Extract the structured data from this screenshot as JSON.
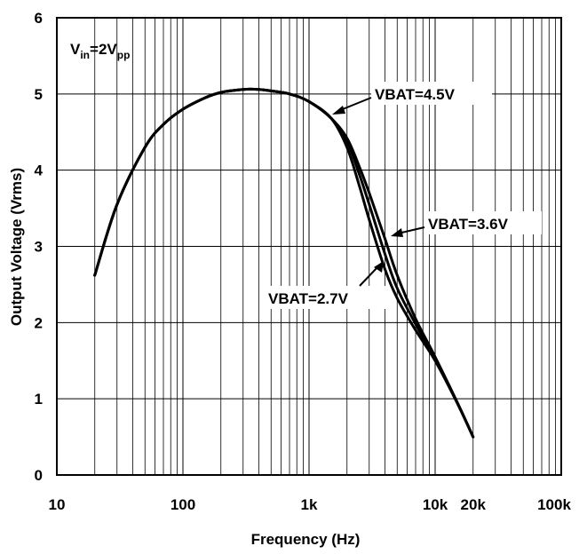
{
  "chart_data": {
    "type": "line",
    "title": "",
    "xlabel": "Frequency (Hz)",
    "ylabel": "Output Voltage (Vrms)",
    "xscale": "log",
    "xlim": [
      10,
      100000
    ],
    "ylim": [
      0,
      6
    ],
    "grid": true,
    "x_ticks": [
      {
        "value": 10,
        "label": "10"
      },
      {
        "value": 100,
        "label": "100"
      },
      {
        "value": 1000,
        "label": "1k"
      },
      {
        "value": 10000,
        "label": "10k"
      },
      {
        "value": 20000,
        "label": "20k"
      },
      {
        "value": 100000,
        "label": "100k"
      }
    ],
    "y_ticks": [
      {
        "value": 0,
        "label": "0"
      },
      {
        "value": 1,
        "label": "1"
      },
      {
        "value": 2,
        "label": "2"
      },
      {
        "value": 3,
        "label": "3"
      },
      {
        "value": 4,
        "label": "4"
      },
      {
        "value": 5,
        "label": "5"
      },
      {
        "value": 6,
        "label": "6"
      }
    ],
    "series": [
      {
        "name": "VBAT=4.5V",
        "x": [
          20,
          30,
          50,
          70,
          100,
          150,
          200,
          300,
          400,
          500,
          700,
          1000,
          1500,
          2000,
          2500,
          3000,
          4000,
          5000,
          7000,
          10000,
          15000,
          20000
        ],
        "y": [
          2.62,
          3.55,
          4.3,
          4.6,
          4.8,
          4.95,
          5.02,
          5.06,
          5.06,
          5.04,
          5.0,
          4.9,
          4.68,
          4.42,
          4.05,
          3.7,
          3.1,
          2.62,
          2.05,
          1.55,
          0.95,
          0.5
        ]
      },
      {
        "name": "VBAT=3.6V",
        "x": [
          20,
          30,
          50,
          70,
          100,
          150,
          200,
          300,
          400,
          500,
          700,
          1000,
          1500,
          2000,
          2500,
          3000,
          4000,
          5000,
          7000,
          10000,
          15000,
          20000
        ],
        "y": [
          2.62,
          3.55,
          4.3,
          4.6,
          4.8,
          4.95,
          5.02,
          5.06,
          5.06,
          5.04,
          5.0,
          4.9,
          4.68,
          4.38,
          3.95,
          3.55,
          2.9,
          2.45,
          1.98,
          1.52,
          0.95,
          0.5
        ]
      },
      {
        "name": "VBAT=2.7V",
        "x": [
          20,
          30,
          50,
          70,
          100,
          150,
          200,
          300,
          400,
          500,
          700,
          1000,
          1500,
          2000,
          2500,
          3000,
          4000,
          5000,
          7000,
          10000,
          15000,
          20000
        ],
        "y": [
          2.62,
          3.55,
          4.3,
          4.6,
          4.8,
          4.95,
          5.02,
          5.06,
          5.06,
          5.04,
          5.0,
          4.9,
          4.68,
          4.3,
          3.8,
          3.35,
          2.7,
          2.32,
          1.9,
          1.5,
          0.94,
          0.5
        ]
      }
    ],
    "annotations": [
      {
        "id": "vin",
        "text_main": "V",
        "text_sub1": "in",
        "text_mid": "=2V",
        "text_sub2": "pp"
      },
      {
        "id": "v45",
        "text": "VBAT=4.5V",
        "points_to": {
          "x": 1700,
          "y": 4.45
        }
      },
      {
        "id": "v36",
        "text": "VBAT=3.6V",
        "points_to": {
          "x": 4300,
          "y": 3.0
        }
      },
      {
        "id": "v27",
        "text": "VBAT=2.7V",
        "points_to": {
          "x": 3900,
          "y": 2.72
        }
      }
    ]
  }
}
